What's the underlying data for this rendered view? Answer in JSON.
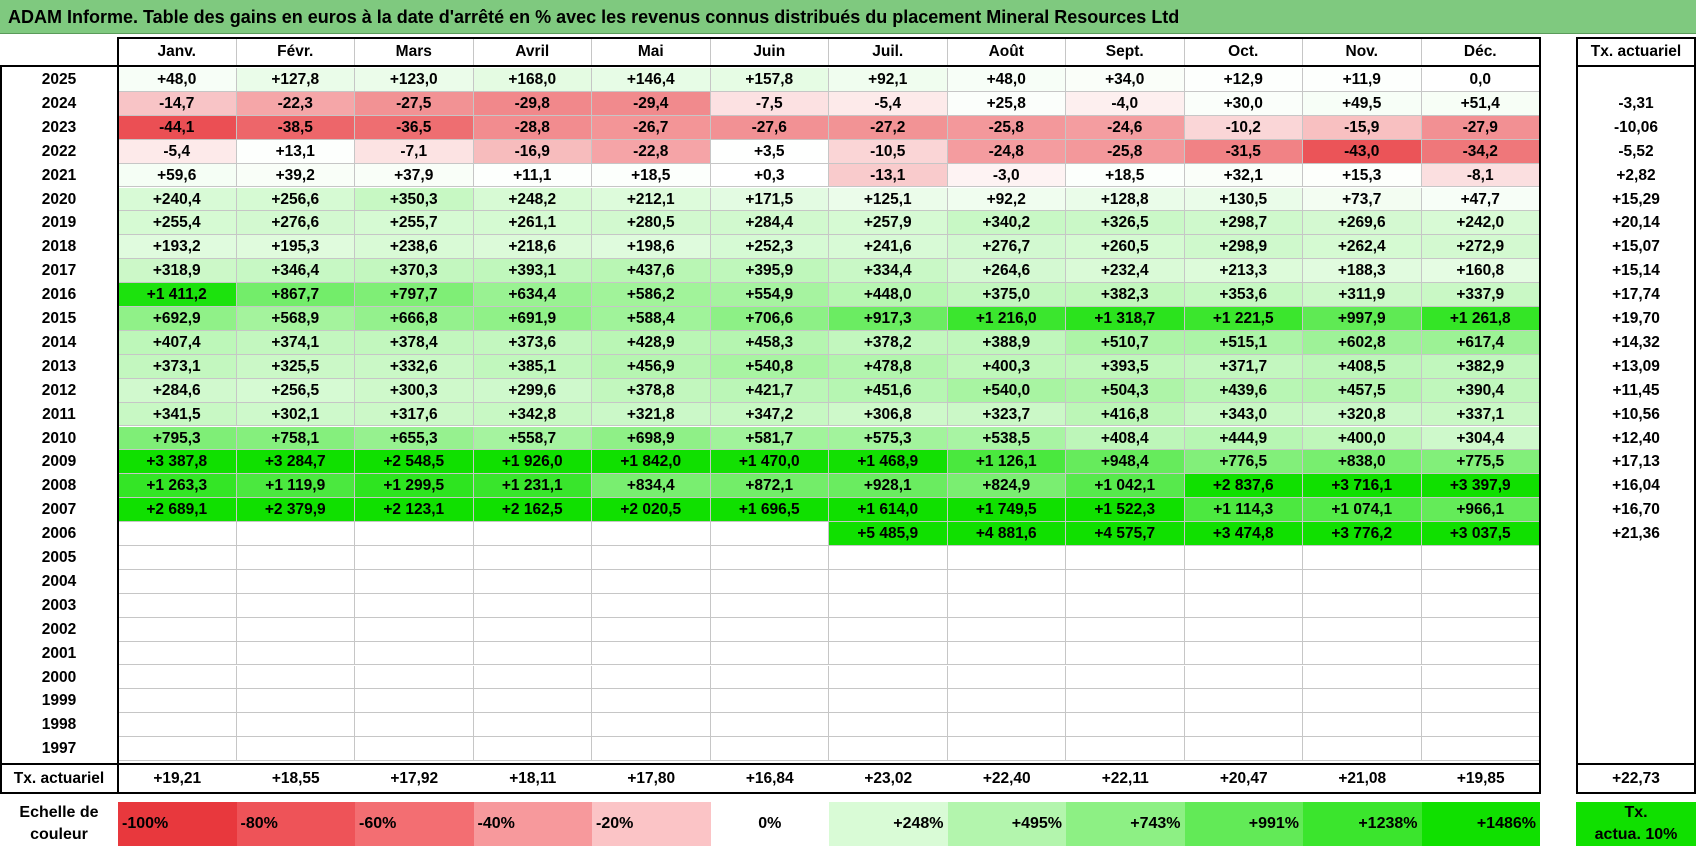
{
  "title": "ADAM Informe. Table des gains en euros à la date d'arrêté en % avec les revenus connus distribués du placement Mineral Resources Ltd",
  "months": [
    "Janv.",
    "Févr.",
    "Mars",
    "Avril",
    "Mai",
    "Juin",
    "Juil.",
    "Août",
    "Sept.",
    "Oct.",
    "Nov.",
    "Déc."
  ],
  "annual_header": "Tx. actuariel",
  "rows": [
    {
      "year": "2025",
      "values": [
        "+48,0",
        "+127,8",
        "+123,0",
        "+168,0",
        "+146,4",
        "+157,8",
        "+92,1",
        "+48,0",
        "+34,0",
        "+12,9",
        "+11,9",
        "0,0"
      ],
      "rate": ""
    },
    {
      "year": "2024",
      "values": [
        "-14,7",
        "-22,3",
        "-27,5",
        "-29,8",
        "-29,4",
        "-7,5",
        "-5,4",
        "+25,8",
        "-4,0",
        "+30,0",
        "+49,5",
        "+51,4"
      ],
      "rate": "-3,31"
    },
    {
      "year": "2023",
      "values": [
        "-44,1",
        "-38,5",
        "-36,5",
        "-28,8",
        "-26,7",
        "-27,6",
        "-27,2",
        "-25,8",
        "-24,6",
        "-10,2",
        "-15,9",
        "-27,9"
      ],
      "rate": "-10,06"
    },
    {
      "year": "2022",
      "values": [
        "-5,4",
        "+13,1",
        "-7,1",
        "-16,9",
        "-22,8",
        "+3,5",
        "-10,5",
        "-24,8",
        "-25,8",
        "-31,5",
        "-43,0",
        "-34,2"
      ],
      "rate": "-5,52"
    },
    {
      "year": "2021",
      "values": [
        "+59,6",
        "+39,2",
        "+37,9",
        "+11,1",
        "+18,5",
        "+0,3",
        "-13,1",
        "-3,0",
        "+18,5",
        "+32,1",
        "+15,3",
        "-8,1"
      ],
      "rate": "+2,82"
    },
    {
      "year": "2020",
      "values": [
        "+240,4",
        "+256,6",
        "+350,3",
        "+248,2",
        "+212,1",
        "+171,5",
        "+125,1",
        "+92,2",
        "+128,8",
        "+130,5",
        "+73,7",
        "+47,7"
      ],
      "rate": "+15,29"
    },
    {
      "year": "2019",
      "values": [
        "+255,4",
        "+276,6",
        "+255,7",
        "+261,1",
        "+280,5",
        "+284,4",
        "+257,9",
        "+340,2",
        "+326,5",
        "+298,7",
        "+269,6",
        "+242,0"
      ],
      "rate": "+20,14"
    },
    {
      "year": "2018",
      "values": [
        "+193,2",
        "+195,3",
        "+238,6",
        "+218,6",
        "+198,6",
        "+252,3",
        "+241,6",
        "+276,7",
        "+260,5",
        "+298,9",
        "+262,4",
        "+272,9"
      ],
      "rate": "+15,07"
    },
    {
      "year": "2017",
      "values": [
        "+318,9",
        "+346,4",
        "+370,3",
        "+393,1",
        "+437,6",
        "+395,9",
        "+334,4",
        "+264,6",
        "+232,4",
        "+213,3",
        "+188,3",
        "+160,8"
      ],
      "rate": "+15,14"
    },
    {
      "year": "2016",
      "values": [
        "+1 411,2",
        "+867,7",
        "+797,7",
        "+634,4",
        "+586,2",
        "+554,9",
        "+448,0",
        "+375,0",
        "+382,3",
        "+353,6",
        "+311,9",
        "+337,9"
      ],
      "rate": "+17,74"
    },
    {
      "year": "2015",
      "values": [
        "+692,9",
        "+568,9",
        "+666,8",
        "+691,9",
        "+588,4",
        "+706,6",
        "+917,3",
        "+1 216,0",
        "+1 318,7",
        "+1 221,5",
        "+997,9",
        "+1 261,8"
      ],
      "rate": "+19,70"
    },
    {
      "year": "2014",
      "values": [
        "+407,4",
        "+374,1",
        "+378,4",
        "+373,6",
        "+428,9",
        "+458,3",
        "+378,2",
        "+388,9",
        "+510,7",
        "+515,1",
        "+602,8",
        "+617,4"
      ],
      "rate": "+14,32"
    },
    {
      "year": "2013",
      "values": [
        "+373,1",
        "+325,5",
        "+332,6",
        "+385,1",
        "+456,9",
        "+540,8",
        "+478,8",
        "+400,3",
        "+393,5",
        "+371,7",
        "+408,5",
        "+382,9"
      ],
      "rate": "+13,09"
    },
    {
      "year": "2012",
      "values": [
        "+284,6",
        "+256,5",
        "+300,3",
        "+299,6",
        "+378,8",
        "+421,7",
        "+451,6",
        "+540,0",
        "+504,3",
        "+439,6",
        "+457,5",
        "+390,4"
      ],
      "rate": "+11,45"
    },
    {
      "year": "2011",
      "values": [
        "+341,5",
        "+302,1",
        "+317,6",
        "+342,8",
        "+321,8",
        "+347,2",
        "+306,8",
        "+323,7",
        "+416,8",
        "+343,0",
        "+320,8",
        "+337,1"
      ],
      "rate": "+10,56"
    },
    {
      "year": "2010",
      "values": [
        "+795,3",
        "+758,1",
        "+655,3",
        "+558,7",
        "+698,9",
        "+581,7",
        "+575,3",
        "+538,5",
        "+408,4",
        "+444,9",
        "+400,0",
        "+304,4"
      ],
      "rate": "+12,40"
    },
    {
      "year": "2009",
      "values": [
        "+3 387,8",
        "+3 284,7",
        "+2 548,5",
        "+1 926,0",
        "+1 842,0",
        "+1 470,0",
        "+1 468,9",
        "+1 126,1",
        "+948,4",
        "+776,5",
        "+838,0",
        "+775,5"
      ],
      "rate": "+17,13"
    },
    {
      "year": "2008",
      "values": [
        "+1 263,3",
        "+1 119,9",
        "+1 299,5",
        "+1 231,1",
        "+834,4",
        "+872,1",
        "+928,1",
        "+824,9",
        "+1 042,1",
        "+2 837,6",
        "+3 716,1",
        "+3 397,9"
      ],
      "rate": "+16,04"
    },
    {
      "year": "2007",
      "values": [
        "+2 689,1",
        "+2 379,9",
        "+2 123,1",
        "+2 162,5",
        "+2 020,5",
        "+1 696,5",
        "+1 614,0",
        "+1 749,5",
        "+1 522,3",
        "+1 114,3",
        "+1 074,1",
        "+966,1"
      ],
      "rate": "+16,70"
    },
    {
      "year": "2006",
      "values": [
        "",
        "",
        "",
        "",
        "",
        "",
        "+5 485,9",
        "+4 881,6",
        "+4 575,7",
        "+3 474,8",
        "+3 776,2",
        "+3 037,5"
      ],
      "rate": "+21,36"
    },
    {
      "year": "2005",
      "values": [
        "",
        "",
        "",
        "",
        "",
        "",
        "",
        "",
        "",
        "",
        "",
        ""
      ],
      "rate": ""
    },
    {
      "year": "2004",
      "values": [
        "",
        "",
        "",
        "",
        "",
        "",
        "",
        "",
        "",
        "",
        "",
        ""
      ],
      "rate": ""
    },
    {
      "year": "2003",
      "values": [
        "",
        "",
        "",
        "",
        "",
        "",
        "",
        "",
        "",
        "",
        "",
        ""
      ],
      "rate": ""
    },
    {
      "year": "2002",
      "values": [
        "",
        "",
        "",
        "",
        "",
        "",
        "",
        "",
        "",
        "",
        "",
        ""
      ],
      "rate": ""
    },
    {
      "year": "2001",
      "values": [
        "",
        "",
        "",
        "",
        "",
        "",
        "",
        "",
        "",
        "",
        "",
        ""
      ],
      "rate": ""
    },
    {
      "year": "2000",
      "values": [
        "",
        "",
        "",
        "",
        "",
        "",
        "",
        "",
        "",
        "",
        "",
        ""
      ],
      "rate": ""
    },
    {
      "year": "1999",
      "values": [
        "",
        "",
        "",
        "",
        "",
        "",
        "",
        "",
        "",
        "",
        "",
        ""
      ],
      "rate": ""
    },
    {
      "year": "1998",
      "values": [
        "",
        "",
        "",
        "",
        "",
        "",
        "",
        "",
        "",
        "",
        "",
        ""
      ],
      "rate": ""
    },
    {
      "year": "1997",
      "values": [
        "",
        "",
        "",
        "",
        "",
        "",
        "",
        "",
        "",
        "",
        "",
        ""
      ],
      "rate": ""
    }
  ],
  "footer": {
    "label": "Tx. actuariel",
    "values": [
      "+19,21",
      "+18,55",
      "+17,92",
      "+18,11",
      "+17,80",
      "+16,84",
      "+23,02",
      "+22,40",
      "+22,11",
      "+20,47",
      "+21,08",
      "+19,85"
    ],
    "total": "+22,73"
  },
  "legend": {
    "label_line1": "Echelle de",
    "label_line2": "couleur",
    "steps": [
      {
        "text": "-100%",
        "color": "#e8383d",
        "align": "left"
      },
      {
        "text": "-80%",
        "color": "#ee5358",
        "align": "left"
      },
      {
        "text": "-60%",
        "color": "#f36e72",
        "align": "left"
      },
      {
        "text": "-40%",
        "color": "#f7999c",
        "align": "left"
      },
      {
        "text": "-20%",
        "color": "#fbc4c6",
        "align": "left"
      },
      {
        "text": "0%",
        "color": "#ffffff",
        "align": "center"
      },
      {
        "text": "+248%",
        "color": "#d9fbd6",
        "align": "right"
      },
      {
        "text": "+495%",
        "color": "#b3f5ad",
        "align": "right"
      },
      {
        "text": "+743%",
        "color": "#8df084",
        "align": "right"
      },
      {
        "text": "+991%",
        "color": "#62ea57",
        "align": "right"
      },
      {
        "text": "+1238%",
        "color": "#3be52d",
        "align": "right"
      },
      {
        "text": "+1486%",
        "color": "#10e000",
        "align": "right"
      }
    ],
    "end_label_line1": "Tx.",
    "end_label_line2": "actua. 10%",
    "end_color": "#10e000"
  },
  "colors": {
    "title_bg": "#7fc97f",
    "negative_max": "#e8383d",
    "positive_max": "#10e000"
  }
}
